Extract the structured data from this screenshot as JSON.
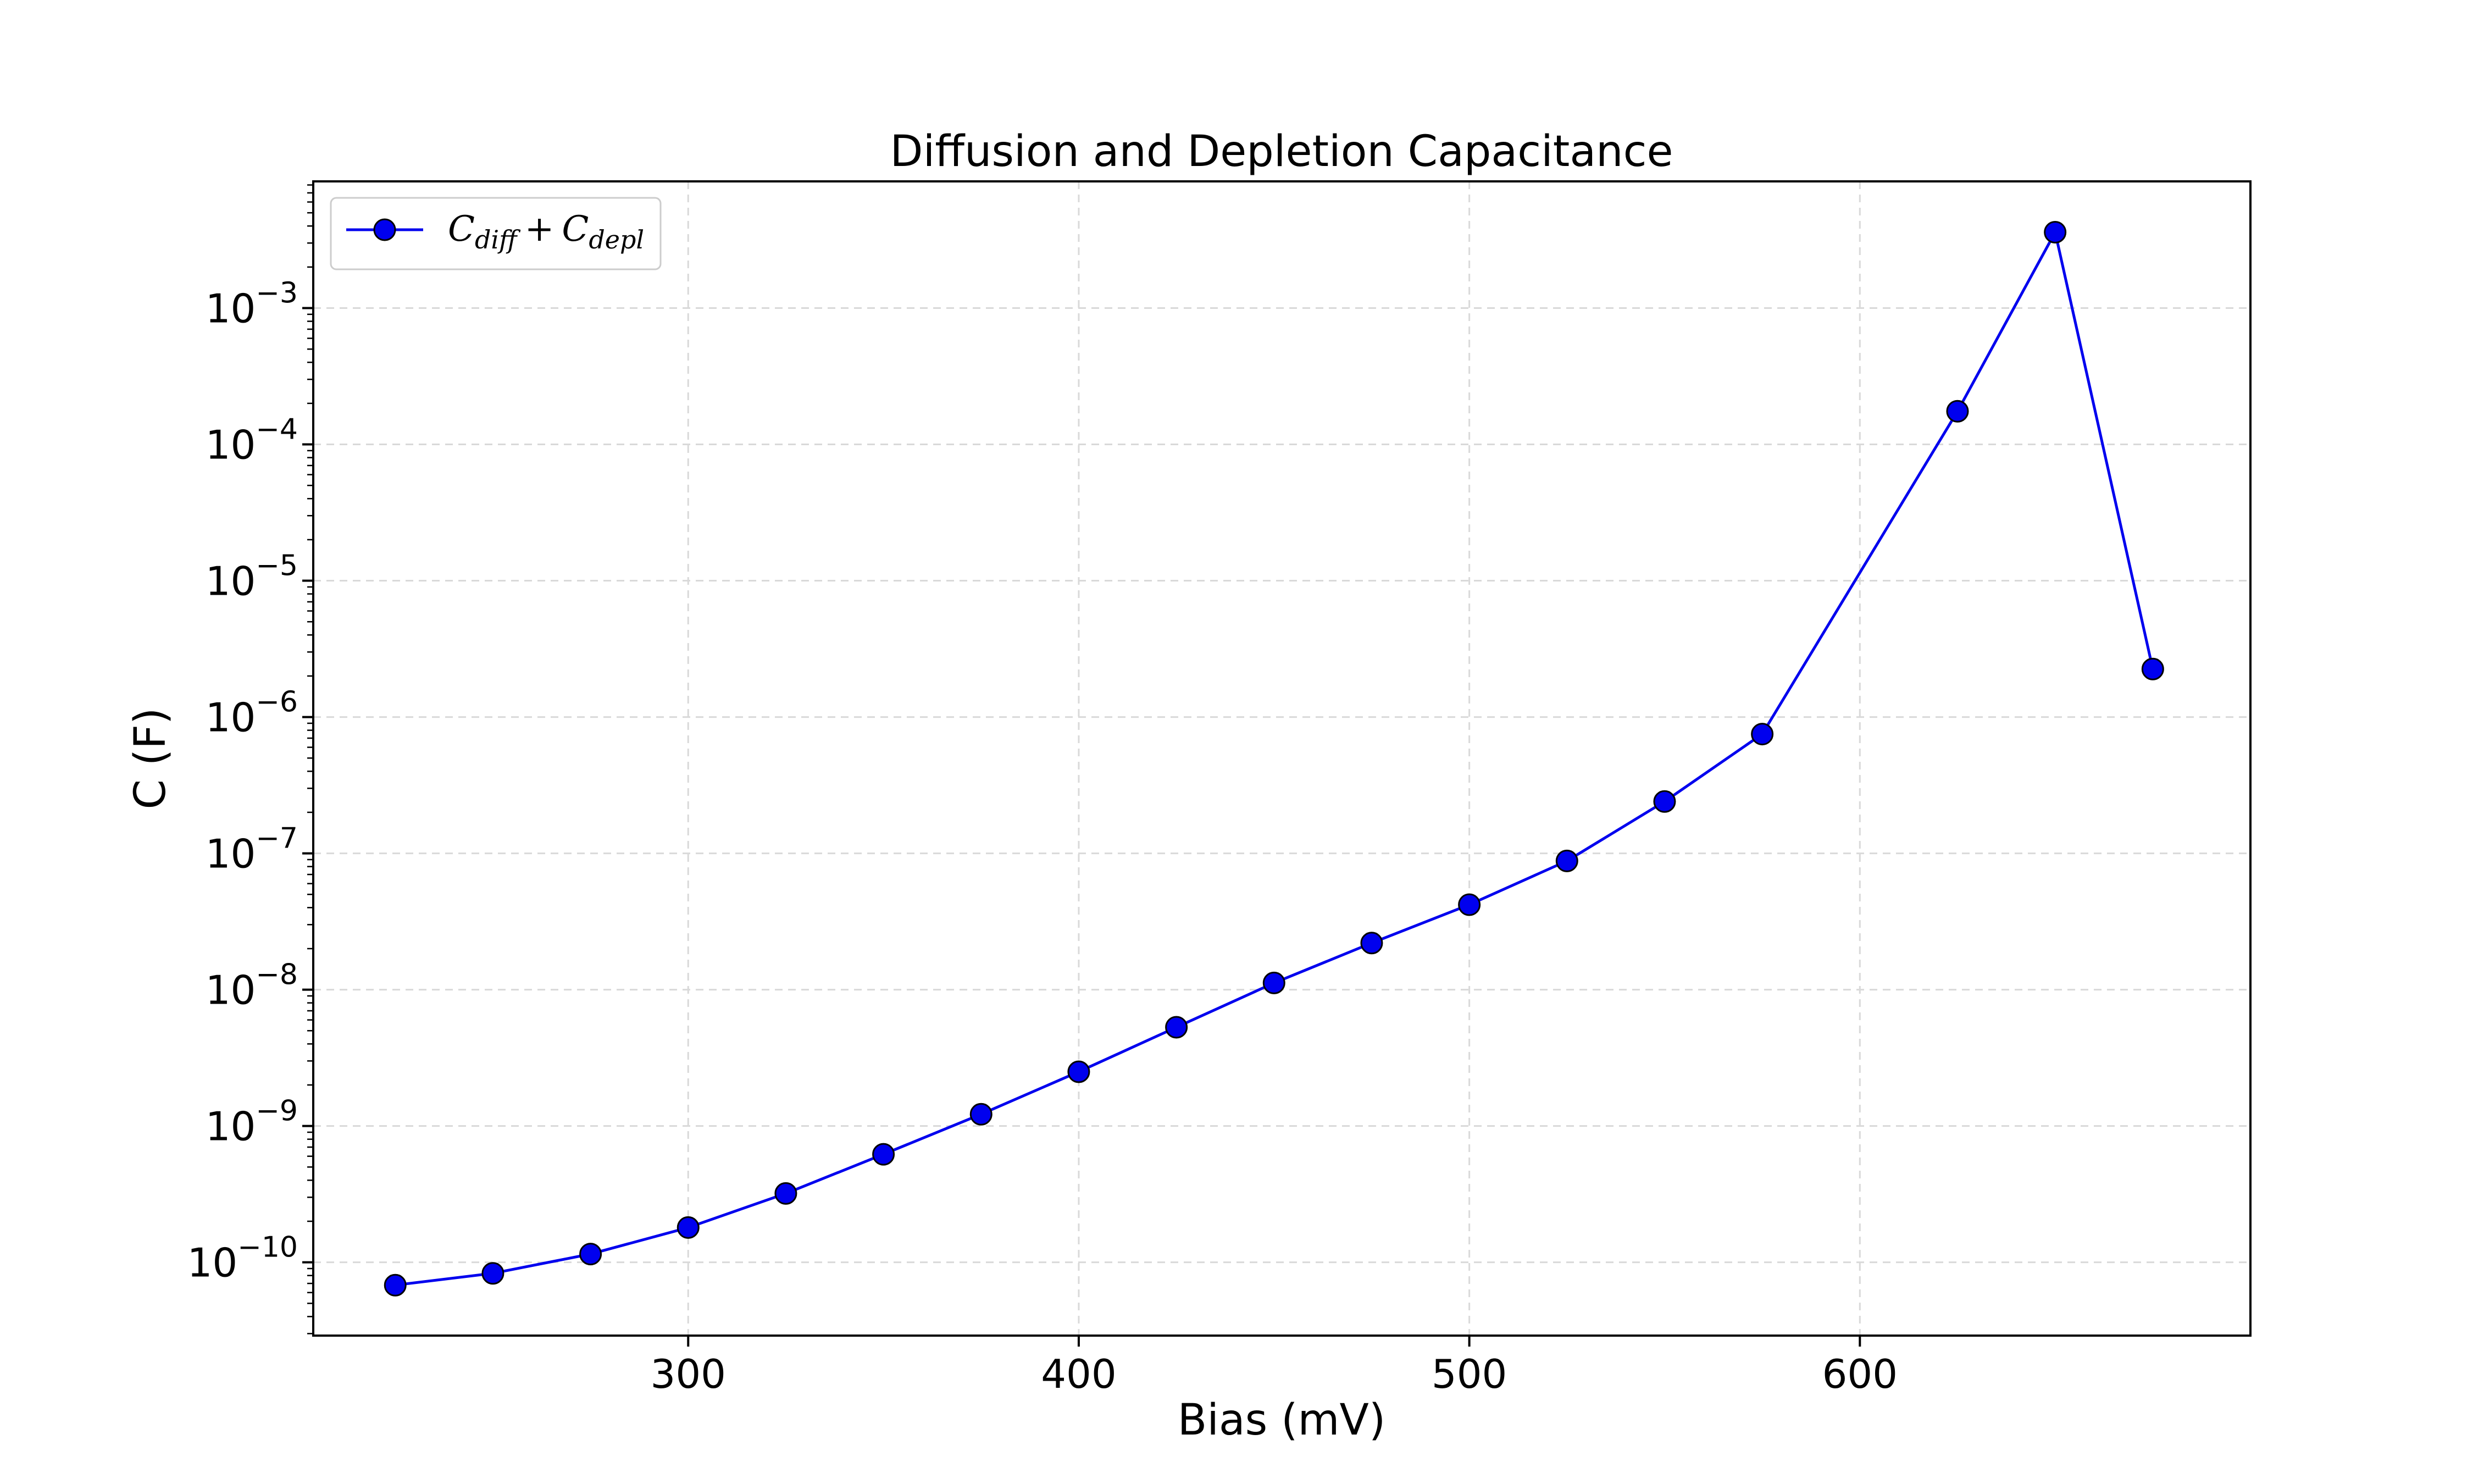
{
  "chart_data": {
    "type": "line",
    "title": "Diffusion and Depletion Capacitance",
    "xlabel": "Bias (mV)",
    "ylabel": "C (F)",
    "x_scale": "linear",
    "y_scale": "log",
    "xlim": [
      204,
      700
    ],
    "ylim": [
      2.9e-11,
      0.0085
    ],
    "x_ticks": [
      300,
      400,
      500,
      600
    ],
    "y_tick_exponents": [
      -10,
      -9,
      -8,
      -7,
      -6,
      -5,
      -4,
      -3
    ],
    "grid": true,
    "grid_style": "dashed",
    "legend_position": "top-left",
    "series_color": "#0000ee",
    "marker_edge_color": "#000000",
    "series": [
      {
        "name": "C_diff + C_depl",
        "legend_main": "C",
        "legend_sub1": "diff",
        "legend_plus": "+",
        "legend_sub2": "depl",
        "points": [
          {
            "x": 225,
            "y": 6.8e-11
          },
          {
            "x": 250,
            "y": 8.3e-11
          },
          {
            "x": 275,
            "y": 1.15e-10
          },
          {
            "x": 300,
            "y": 1.8e-10
          },
          {
            "x": 325,
            "y": 3.2e-10
          },
          {
            "x": 350,
            "y": 6.2e-10
          },
          {
            "x": 375,
            "y": 1.22e-09
          },
          {
            "x": 400,
            "y": 2.5e-09
          },
          {
            "x": 425,
            "y": 5.3e-09
          },
          {
            "x": 450,
            "y": 1.12e-08
          },
          {
            "x": 475,
            "y": 2.2e-08
          },
          {
            "x": 500,
            "y": 4.2e-08
          },
          {
            "x": 525,
            "y": 8.8e-08
          },
          {
            "x": 550,
            "y": 2.4e-07
          },
          {
            "x": 575,
            "y": 7.5e-07
          },
          {
            "x": 625,
            "y": 0.000175
          },
          {
            "x": 650,
            "y": 0.0036
          },
          {
            "x": 675,
            "y": 2.25e-06
          }
        ]
      }
    ]
  }
}
